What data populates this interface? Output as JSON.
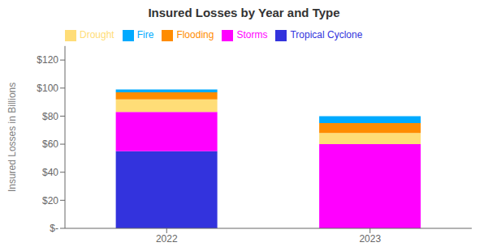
{
  "chart_data": {
    "type": "bar",
    "title": "Insured Losses by Year and Type",
    "categories": [
      "2022",
      "2023"
    ],
    "series": [
      {
        "name": "Tropical Cyclone",
        "color": "#3333dd",
        "values": [
          55,
          0
        ]
      },
      {
        "name": "Storms",
        "color": "#ff00ff",
        "values": [
          28,
          60
        ]
      },
      {
        "name": "Drought",
        "color": "#ffdd77",
        "values": [
          9,
          8
        ]
      },
      {
        "name": "Flooding",
        "color": "#ff8c00",
        "values": [
          5,
          7
        ]
      },
      {
        "name": "Fire",
        "color": "#00aaff",
        "values": [
          2,
          5
        ]
      }
    ],
    "ylabel": "Insured Losses in Billions",
    "ylim": [
      0,
      130
    ],
    "yticks": [
      {
        "value": 0,
        "label": "$-"
      },
      {
        "value": 20,
        "label": "$20"
      },
      {
        "value": 40,
        "label": "$40"
      },
      {
        "value": 60,
        "label": "$60"
      },
      {
        "value": 80,
        "label": "$80"
      },
      {
        "value": 100,
        "label": "$100"
      },
      {
        "value": 120,
        "label": "$120"
      }
    ],
    "stacked": true,
    "legend": "upper left",
    "grid": false
  }
}
